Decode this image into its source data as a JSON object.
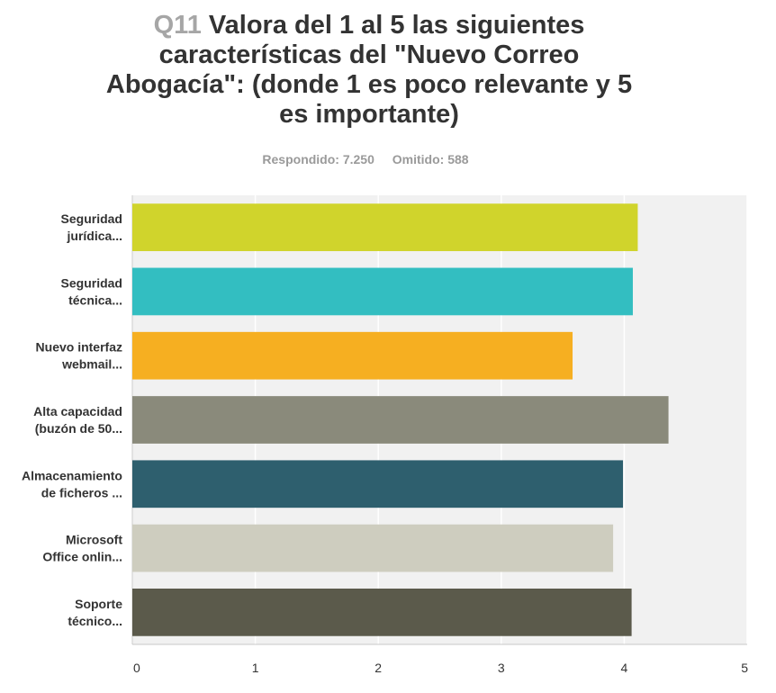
{
  "header": {
    "question_number": "Q11",
    "question_text": "Valora del 1 al 5 las siguientes características del \"Nuevo Correo Abogacía\": (donde 1 es poco relevante y 5 es importante)"
  },
  "stats": {
    "answered_label": "Respondido:",
    "answered_value": "7.250",
    "skipped_label": "Omitido:",
    "skipped_value": "588"
  },
  "chart_data": {
    "type": "bar",
    "orientation": "horizontal",
    "categories": [
      [
        "Seguridad",
        "jurídica..."
      ],
      [
        "Seguridad",
        "técnica..."
      ],
      [
        "Nuevo interfaz",
        "webmail..."
      ],
      [
        "Alta capacidad",
        "(buzón de 50..."
      ],
      [
        "Almacenamiento",
        "de ficheros ..."
      ],
      [
        "Microsoft",
        "Office onlin..."
      ],
      [
        "Soporte",
        "técnico..."
      ]
    ],
    "values": [
      4.11,
      4.07,
      3.58,
      4.36,
      3.99,
      3.91,
      4.06
    ],
    "colors": [
      "#d0d42c",
      "#33bec1",
      "#f6af21",
      "#8a8a7b",
      "#2e5f6e",
      "#cecdbf",
      "#5b5a4b"
    ],
    "xlim": [
      0,
      5
    ],
    "xticks": [
      "0",
      "1",
      "2",
      "3",
      "4",
      "5"
    ],
    "grid": true
  }
}
